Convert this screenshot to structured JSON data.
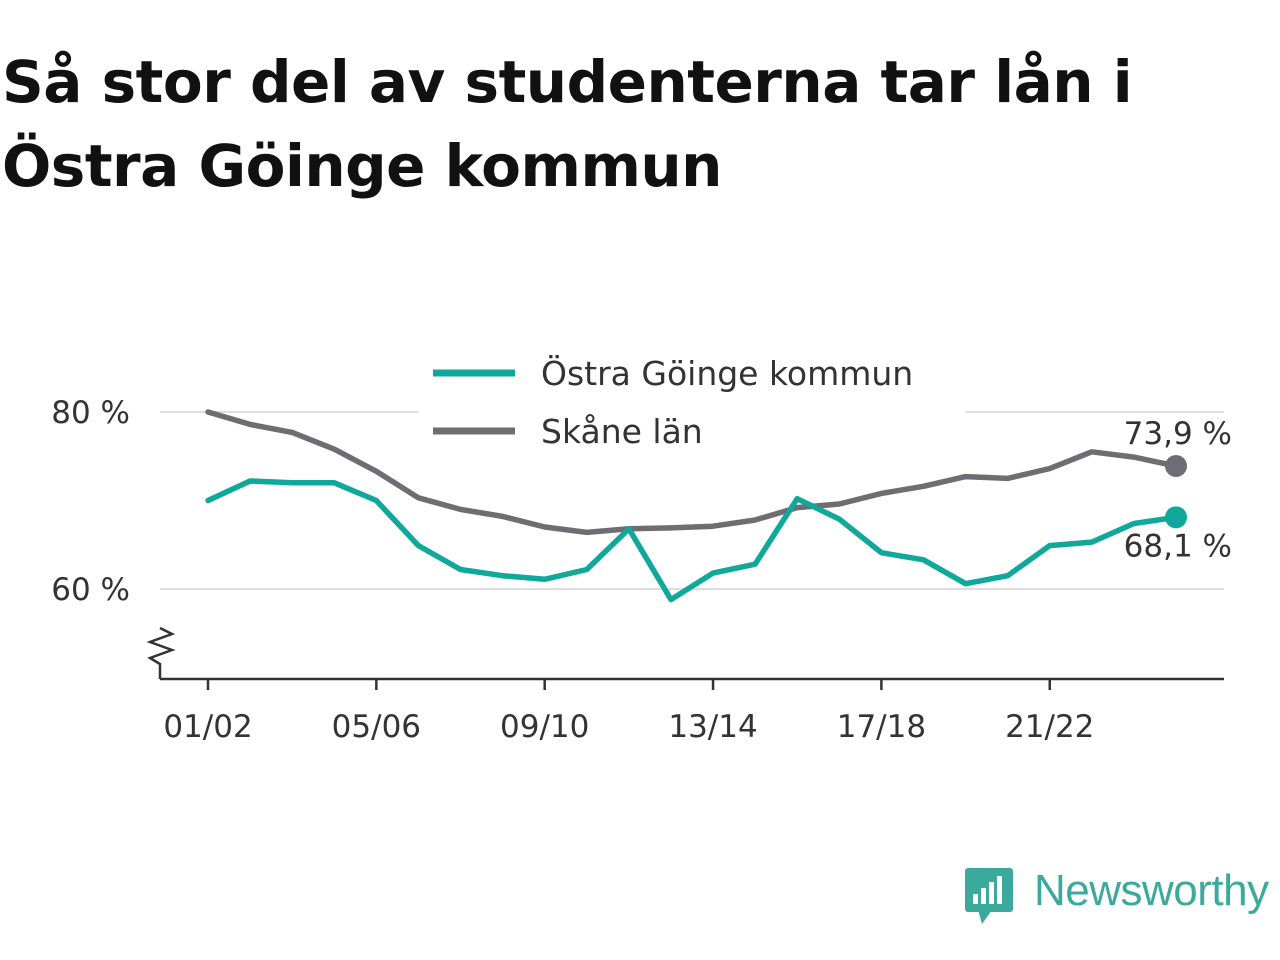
{
  "title": "Så stor del av studenterna tar lån i Östra Göinge kommun",
  "logo_text": "Newsworthy",
  "colors": {
    "ostra": "#10a89b",
    "skane": "#6e6d74",
    "grid": "#dddddd",
    "axis": "#333333",
    "logo": "#3ba99c"
  },
  "chart_data": {
    "type": "line",
    "title": "Så stor del av studenterna tar lån i Östra Göinge kommun",
    "xlabel": "",
    "ylabel": "",
    "x": [
      "01/02",
      "02/03",
      "03/04",
      "04/05",
      "05/06",
      "06/07",
      "07/08",
      "08/09",
      "09/10",
      "10/11",
      "11/12",
      "12/13",
      "13/14",
      "14/15",
      "15/16",
      "16/17",
      "17/18",
      "18/19",
      "19/20",
      "20/21",
      "21/22",
      "22/23",
      "23/24",
      "24/25"
    ],
    "x_tick_labels": [
      "01/02",
      "05/06",
      "09/10",
      "13/14",
      "17/18",
      "21/22"
    ],
    "y_ticks": [
      60,
      80
    ],
    "y_tick_labels": [
      "60 %",
      "80 %"
    ],
    "ylim": [
      50,
      85
    ],
    "y_axis_break": true,
    "grid": true,
    "legend_position": "top-center",
    "series": [
      {
        "name": "Östra Göinge kommun",
        "color": "#10a89b",
        "values": [
          70.0,
          72.2,
          72.0,
          72.0,
          70.0,
          64.9,
          62.2,
          61.5,
          61.1,
          62.2,
          66.8,
          58.8,
          61.8,
          62.8,
          70.2,
          67.9,
          64.1,
          63.3,
          60.6,
          61.5,
          64.9,
          65.3,
          67.4,
          68.1
        ],
        "end_label": "68,1 %"
      },
      {
        "name": "Skåne län",
        "color": "#6e6d74",
        "values": [
          80.0,
          78.6,
          77.7,
          75.8,
          73.3,
          70.3,
          69.0,
          68.2,
          67.0,
          66.4,
          66.8,
          66.9,
          67.1,
          67.8,
          69.2,
          69.6,
          70.8,
          71.6,
          72.7,
          72.5,
          73.6,
          75.5,
          74.9,
          73.9
        ],
        "end_label": "73,9 %"
      }
    ]
  }
}
